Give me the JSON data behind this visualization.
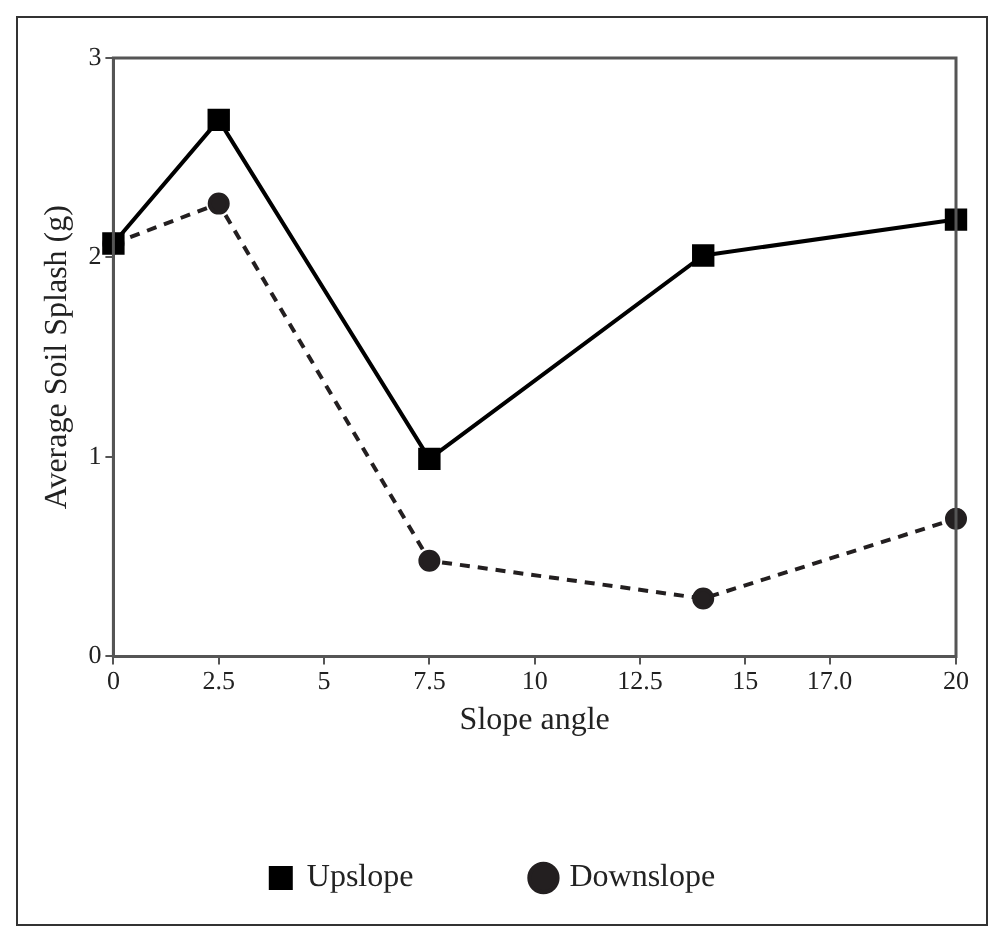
{
  "chart_data": {
    "type": "line",
    "xlabel": "Slope angle",
    "ylabel": "Average Soil Splash (g)",
    "x": [
      0,
      2.5,
      7.5,
      14,
      20
    ],
    "series": [
      {
        "name": "Upslope",
        "color": "#000000",
        "values": [
          2.07,
          2.69,
          0.99,
          2.01,
          2.19
        ],
        "marker": "square",
        "line_style": "solid"
      },
      {
        "name": "Downslope",
        "color": "#231f20",
        "values": [
          2.07,
          2.27,
          0.48,
          0.29,
          0.69
        ],
        "marker": "circle",
        "line_style": "dashed"
      }
    ],
    "xlim": [
      0,
      20
    ],
    "xticks": [
      0,
      2.5,
      5,
      7.5,
      10,
      12.5,
      15,
      {
        "value": 17,
        "label": "17.0"
      },
      20
    ],
    "ylim": [
      0,
      3
    ],
    "yticks": [
      0,
      1,
      2,
      3
    ],
    "grid": false,
    "legend": "bottom"
  }
}
